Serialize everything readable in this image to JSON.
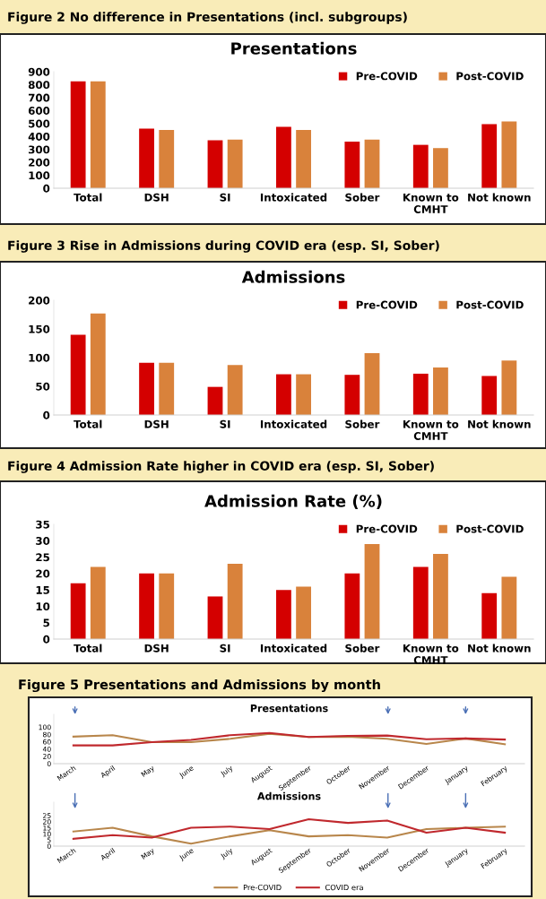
{
  "chart_data": [
    {
      "type": "bar",
      "title": "Presentations",
      "annotations": [
        "Figure 2 No difference in Presentations (incl. subgroups)"
      ],
      "categories": [
        "Total",
        "DSH",
        "SI",
        "Intoxicated",
        "Sober",
        "Known to\nCMHT",
        "Not known"
      ],
      "series": [
        {
          "name": "Pre-COVID",
          "color": "#d40000",
          "values": [
            825,
            460,
            370,
            475,
            360,
            335,
            495
          ]
        },
        {
          "name": "Post-COVID",
          "color": "#d9823b",
          "values": [
            825,
            450,
            375,
            450,
            375,
            310,
            515
          ]
        }
      ],
      "ylim": [
        0,
        900
      ],
      "yticks": [
        0,
        100,
        200,
        300,
        400,
        500,
        600,
        700,
        800,
        900
      ],
      "legend": "top right",
      "grid": false
    },
    {
      "type": "bar",
      "title": "Admissions",
      "annotations": [
        "Figure 3 Rise in Admissions during COVID era (esp. SI, Sober)"
      ],
      "categories": [
        "Total",
        "DSH",
        "SI",
        "Intoxicated",
        "Sober",
        "Known to\nCMHT",
        "Not known"
      ],
      "series": [
        {
          "name": "Pre-COVID",
          "color": "#d40000",
          "values": [
            140,
            91,
            49,
            71,
            70,
            72,
            68
          ]
        },
        {
          "name": "Post-COVID",
          "color": "#d9823b",
          "values": [
            177,
            91,
            87,
            71,
            108,
            83,
            95
          ]
        }
      ],
      "ylim": [
        0,
        200
      ],
      "yticks": [
        0,
        50,
        100,
        150,
        200
      ],
      "legend": "top right",
      "grid": false
    },
    {
      "type": "bar",
      "title": "Admission Rate (%)",
      "annotations": [
        "Figure 4 Admission Rate higher in COVID era (esp. SI, Sober)"
      ],
      "categories": [
        "Total",
        "DSH",
        "SI",
        "Intoxicated",
        "Sober",
        "Known to\nCMHT",
        "Not known"
      ],
      "series": [
        {
          "name": "Pre-COVID",
          "color": "#d40000",
          "values": [
            17,
            20,
            13,
            15,
            20,
            22,
            14
          ]
        },
        {
          "name": "Post-COVID",
          "color": "#d9823b",
          "values": [
            22,
            20,
            23,
            16,
            29,
            26,
            19
          ]
        }
      ],
      "ylim": [
        0,
        35
      ],
      "yticks": [
        0,
        5,
        10,
        15,
        20,
        25,
        30,
        35
      ],
      "legend": "top right",
      "grid": false
    },
    {
      "type": "line",
      "title": "Presentations",
      "annotations": [
        "Figure 5 Presentations and Admissions by month"
      ],
      "categories": [
        "March",
        "April",
        "May",
        "June",
        "July",
        "August",
        "September",
        "October",
        "November",
        "December",
        "January",
        "February"
      ],
      "series": [
        {
          "color": "#b8864b",
          "values": [
            74,
            78,
            59,
            59,
            68,
            82,
            73,
            74,
            68,
            54,
            69,
            53
          ]
        },
        {
          "color": "#c0282d",
          "values": [
            50,
            50,
            59,
            65,
            78,
            84,
            73,
            76,
            77,
            67,
            69,
            66
          ]
        }
      ],
      "ylim": [
        0,
        135
      ],
      "yticks": [
        0,
        20,
        40,
        60,
        80,
        100
      ],
      "legend": false,
      "grid": false
    },
    {
      "type": "line",
      "title": "Admissions",
      "categories": [
        "March",
        "April",
        "May",
        "June",
        "July",
        "August",
        "September",
        "October",
        "November",
        "December",
        "January",
        "February"
      ],
      "series": [
        {
          "name": "Pre-COVID",
          "color": "#b8864b",
          "values": [
            12,
            15,
            8,
            2,
            8,
            13,
            8,
            9,
            7,
            14,
            15,
            16
          ]
        },
        {
          "name": "COVID era",
          "color": "#c0282d",
          "values": [
            6,
            9,
            7,
            15,
            16,
            14,
            22,
            19,
            21,
            11,
            15,
            11
          ]
        }
      ],
      "ylim": [
        0,
        36
      ],
      "yticks": [
        0,
        5,
        10,
        15,
        20,
        25
      ],
      "legend": "bottom",
      "grid": false
    }
  ]
}
